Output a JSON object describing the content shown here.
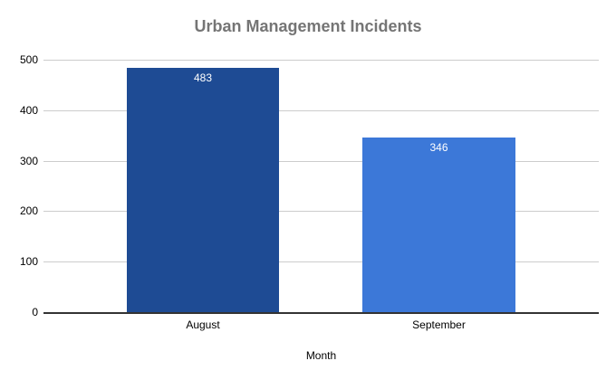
{
  "chart_data": {
    "type": "bar",
    "title": "Urban Management Incidents",
    "categories": [
      "August",
      "September"
    ],
    "values": [
      483,
      346
    ],
    "data_labels": [
      "483",
      "346"
    ],
    "xlabel": "Month",
    "ylabel": "",
    "ylim": [
      0,
      500
    ],
    "yticks": [
      0,
      100,
      200,
      300,
      400,
      500
    ],
    "grid": true,
    "legend": "none",
    "colors": {
      "bars": [
        "#1e4b94",
        "#3c78d8"
      ],
      "data_label": "#ffffff",
      "title": "#757575",
      "tick_label": "#000000",
      "axis_line": "#333333",
      "gridline": "#cccccc",
      "background": "#ffffff"
    }
  }
}
